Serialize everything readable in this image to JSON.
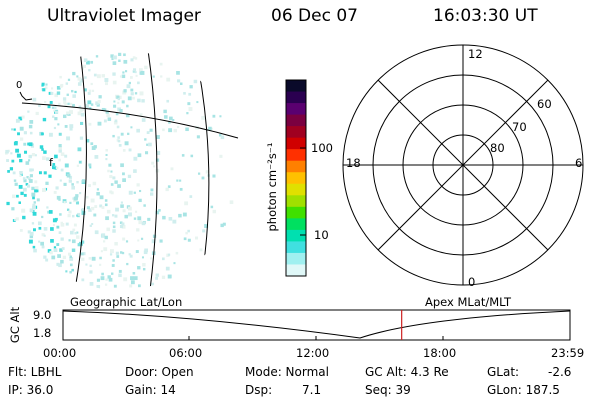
{
  "header": {
    "instrument": "Ultraviolet Imager",
    "date": "06 Dec 07",
    "time": "16:03:30 UT"
  },
  "colorbar": {
    "unit_label": "photon cm⁻²s⁻¹",
    "ticks": [
      "100",
      "10"
    ],
    "colors": [
      "#0a0a2a",
      "#2a0050",
      "#5a0070",
      "#7a0040",
      "#a00020",
      "#d00000",
      "#ff3000",
      "#ff8000",
      "#ffc000",
      "#e0e000",
      "#a0e000",
      "#40e000",
      "#00e060",
      "#00e0b0",
      "#40e0e0",
      "#a0f0f0",
      "#e0f8f8"
    ]
  },
  "image_panel": {
    "label_top": "0",
    "label_left": "f"
  },
  "polar_plot": {
    "mlt_labels": {
      "top": "12",
      "left": "18",
      "right": "6",
      "bottom": "0"
    },
    "lat_labels": [
      "60",
      "70",
      "80"
    ]
  },
  "timeline": {
    "axis_label": "GC Alt",
    "y_ticks": [
      "9.0",
      "1.8"
    ],
    "left_title": "Geographic Lat/Lon",
    "right_title": "Apex  MLat/MLT",
    "x_ticks": [
      "00:00",
      "06:00",
      "12:00",
      "18:00",
      "23:59"
    ],
    "current_time_fraction": 0.668
  },
  "info": {
    "filter": "Flt: LBHL",
    "ip": "IP: 36.0",
    "door": "Door: Open",
    "gain": "Gain: 14",
    "mode": "Mode: Normal",
    "dsp": "Dsp:",
    "dsp_value": "7.1",
    "gc_alt": "GC Alt: 4.3 Re",
    "seq": "Seq: 39",
    "glat": "GLat:",
    "glat_value": "-2.6",
    "glon": "GLon: 187.5"
  }
}
